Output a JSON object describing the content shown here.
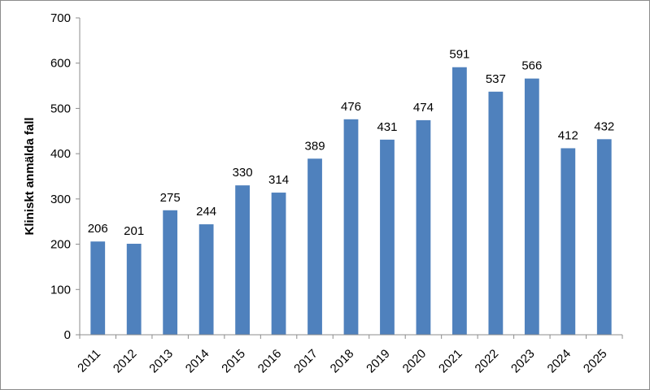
{
  "chart_data": {
    "type": "bar",
    "categories": [
      "2011",
      "2012",
      "2013",
      "2014",
      "2015",
      "2016",
      "2017",
      "2018",
      "2019",
      "2020",
      "2021",
      "2022",
      "2023",
      "2024",
      "2025"
    ],
    "values": [
      206,
      201,
      275,
      244,
      330,
      314,
      389,
      476,
      431,
      474,
      591,
      537,
      566,
      412,
      432
    ],
    "data_labels": [
      "206",
      "201",
      "275",
      "244",
      "330",
      "314",
      "389",
      "476",
      "431",
      "474",
      "591",
      "537",
      "566",
      "412",
      "432"
    ],
    "title": "",
    "xlabel": "",
    "ylabel": "Kliniskt anmälda fall",
    "ylim": [
      0,
      700
    ],
    "yticks": [
      "0",
      "100",
      "200",
      "300",
      "400",
      "500",
      "600",
      "700"
    ],
    "grid": false,
    "legend": "none",
    "bar_color": "#4F81BD"
  }
}
